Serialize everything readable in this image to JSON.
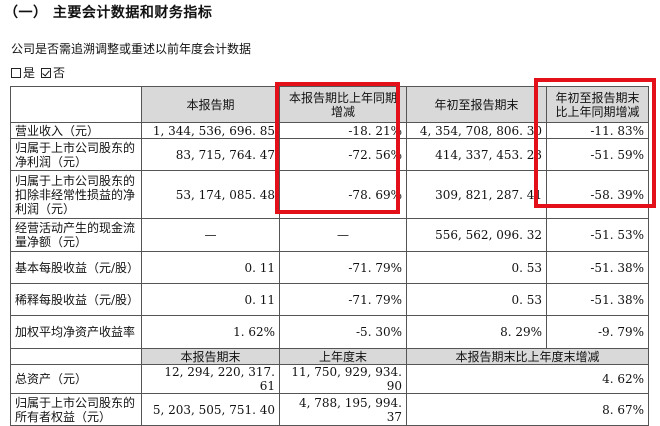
{
  "section_title": "（一）  主要会计数据和财务指标",
  "restate_question": "公司是否需追溯调整或重述以前年度会计数据",
  "options": [
    {
      "label": "是",
      "checked": false
    },
    {
      "label": "否",
      "checked": true
    }
  ],
  "header1": [
    "",
    "本报告期",
    "本报告期比上年同期增减",
    "年初至报告期末",
    "年初至报告期末比上年同期增减"
  ],
  "rows1": [
    {
      "label": "营业收入（元）",
      "v1": "1, 344, 536, 696. 85",
      "v2": "-18. 21%",
      "v3": "4, 354, 708, 806. 30",
      "v4": "-11. 83%"
    },
    {
      "label": "归属于上市公司股东的净利润（元）",
      "v1": "83, 715, 764. 47",
      "v2": "-72. 56%",
      "v3": "414, 337, 453. 23",
      "v4": "-51. 59%"
    },
    {
      "label": "归属于上市公司股东的扣除非经常性损益的净利润（元）",
      "v1": "53, 174, 085. 48",
      "v2": "-78. 69%",
      "v3": "309, 821, 287. 41",
      "v4": "-58. 39%"
    },
    {
      "label": "经营活动产生的现金流量净额（元）",
      "v1": "—",
      "v2": "—",
      "v3": "556, 562, 096. 32",
      "v4": "-51. 53%"
    },
    {
      "label": "基本每股收益（元/股）",
      "v1": "0. 11",
      "v2": "-71. 79%",
      "v3": "0. 53",
      "v4": "-51. 38%"
    },
    {
      "label": "稀释每股收益（元/股）",
      "v1": "0. 11",
      "v2": "-71. 79%",
      "v3": "0. 53",
      "v4": "-51. 38%"
    },
    {
      "label": "加权平均净资产收益率",
      "v1": "1. 62%",
      "v2": "-5. 30%",
      "v3": "8. 29%",
      "v4": "-9. 79%"
    }
  ],
  "header2": [
    "",
    "本报告期末",
    "上年度末",
    "本报告期末比上年度末增减"
  ],
  "rows2": [
    {
      "label": "总资产（元）",
      "v1": "12, 294, 220, 317. 61",
      "v2": "11, 750, 929, 934. 90",
      "v3": "4. 62%"
    },
    {
      "label": "归属于上市公司股东的所有者权益（元）",
      "v1": "5, 203, 505, 751. 40",
      "v2": "4, 788, 195, 994. 37",
      "v3": "8. 67%"
    }
  ],
  "highlight_color": "#e3101a"
}
